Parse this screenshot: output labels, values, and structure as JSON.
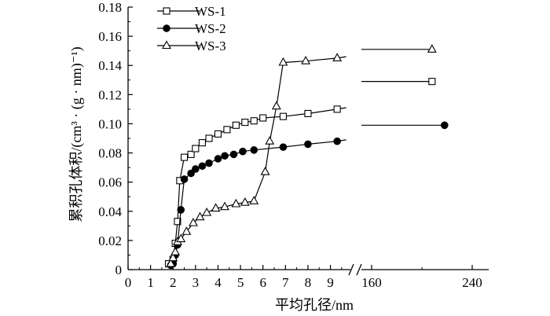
{
  "chart_data": {
    "type": "line",
    "xlabel": "平均孔径/nm",
    "ylabel": "累积孔体积/(cm³ · (g · nm)⁻¹)",
    "ylim": [
      0,
      0.18
    ],
    "y_ticks": [
      "0",
      "0.02",
      "0.04",
      "0.06",
      "0.08",
      "0.10",
      "0.12",
      "0.14",
      "0.16",
      "0.18"
    ],
    "x_ticks_left": [
      "0",
      "1",
      "2",
      "3",
      "4",
      "5",
      "6",
      "7",
      "8",
      "9"
    ],
    "x_ticks_right": [
      "160",
      "240"
    ],
    "x_break": true,
    "legend_position": "top-left",
    "series": [
      {
        "name": "WS-1",
        "marker": "open-square",
        "points": [
          [
            1.8,
            0.004
          ],
          [
            2.0,
            0.007
          ],
          [
            2.1,
            0.018
          ],
          [
            2.2,
            0.033
          ],
          [
            2.3,
            0.061
          ],
          [
            2.5,
            0.077
          ],
          [
            2.8,
            0.079
          ],
          [
            3.0,
            0.083
          ],
          [
            3.3,
            0.087
          ],
          [
            3.6,
            0.09
          ],
          [
            4.0,
            0.093
          ],
          [
            4.4,
            0.096
          ],
          [
            4.8,
            0.099
          ],
          [
            5.2,
            0.101
          ],
          [
            5.6,
            0.102
          ],
          [
            6.0,
            0.104
          ],
          [
            6.9,
            0.105
          ],
          [
            8.0,
            0.107
          ],
          [
            9.3,
            0.11
          ]
        ],
        "tail": {
          "x_left_end": 9.7,
          "y_left_end": 0.111,
          "x_right": 208,
          "y_right": 0.129
        }
      },
      {
        "name": "WS-2",
        "marker": "filled-circle",
        "points": [
          [
            1.9,
            0.003
          ],
          [
            2.0,
            0.004
          ],
          [
            2.1,
            0.01
          ],
          [
            2.2,
            0.017
          ],
          [
            2.35,
            0.041
          ],
          [
            2.5,
            0.062
          ],
          [
            2.8,
            0.066
          ],
          [
            3.0,
            0.069
          ],
          [
            3.3,
            0.071
          ],
          [
            3.6,
            0.073
          ],
          [
            4.0,
            0.076
          ],
          [
            4.3,
            0.078
          ],
          [
            4.7,
            0.079
          ],
          [
            5.1,
            0.081
          ],
          [
            5.6,
            0.082
          ],
          [
            6.9,
            0.084
          ],
          [
            8.0,
            0.086
          ],
          [
            9.3,
            0.088
          ]
        ],
        "tail": {
          "x_left_end": 9.7,
          "y_left_end": 0.089,
          "x_right": 218,
          "y_right": 0.099
        }
      },
      {
        "name": "WS-3",
        "marker": "open-triangle",
        "points": [
          [
            1.9,
            0.004
          ],
          [
            2.0,
            0.008
          ],
          [
            2.1,
            0.012
          ],
          [
            2.2,
            0.019
          ],
          [
            2.35,
            0.021
          ],
          [
            2.6,
            0.026
          ],
          [
            2.9,
            0.032
          ],
          [
            3.2,
            0.036
          ],
          [
            3.5,
            0.039
          ],
          [
            3.9,
            0.042
          ],
          [
            4.3,
            0.043
          ],
          [
            4.8,
            0.045
          ],
          [
            5.2,
            0.046
          ],
          [
            5.6,
            0.047
          ],
          [
            6.1,
            0.067
          ],
          [
            6.3,
            0.088
          ],
          [
            6.6,
            0.112
          ],
          [
            6.9,
            0.142
          ],
          [
            7.9,
            0.143
          ],
          [
            9.3,
            0.145
          ]
        ],
        "tail": {
          "x_left_end": 9.7,
          "y_left_end": 0.146,
          "x_right": 208,
          "y_right": 0.151
        }
      }
    ]
  }
}
